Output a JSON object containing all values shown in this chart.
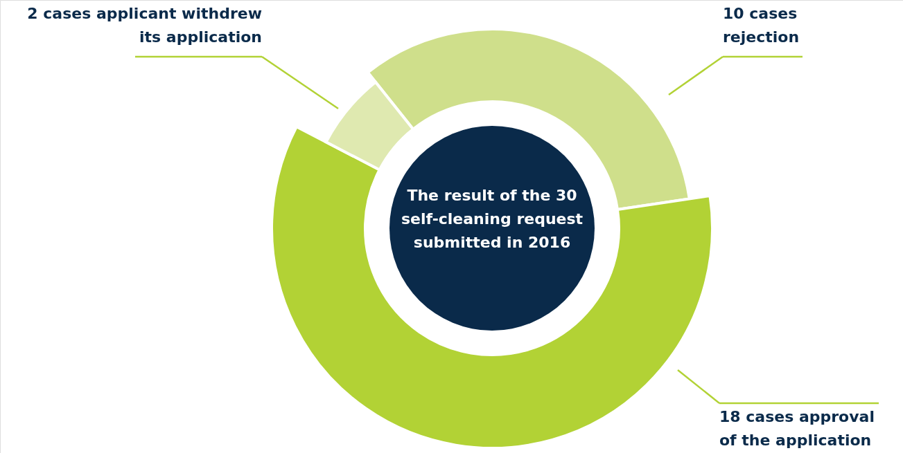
{
  "chart_data": {
    "type": "donut",
    "title": "The result of the 30\nself-cleaning request\nsubmitted in 2016",
    "categories": [
      "10 cases\nrejection",
      "18 cases approval\nof the application",
      "2 cases applicant withdrew\nits application"
    ],
    "values": [
      10,
      18,
      2
    ],
    "colors": [
      "#cfdf8b",
      "#b2d235",
      "#dfe9b0"
    ]
  }
}
